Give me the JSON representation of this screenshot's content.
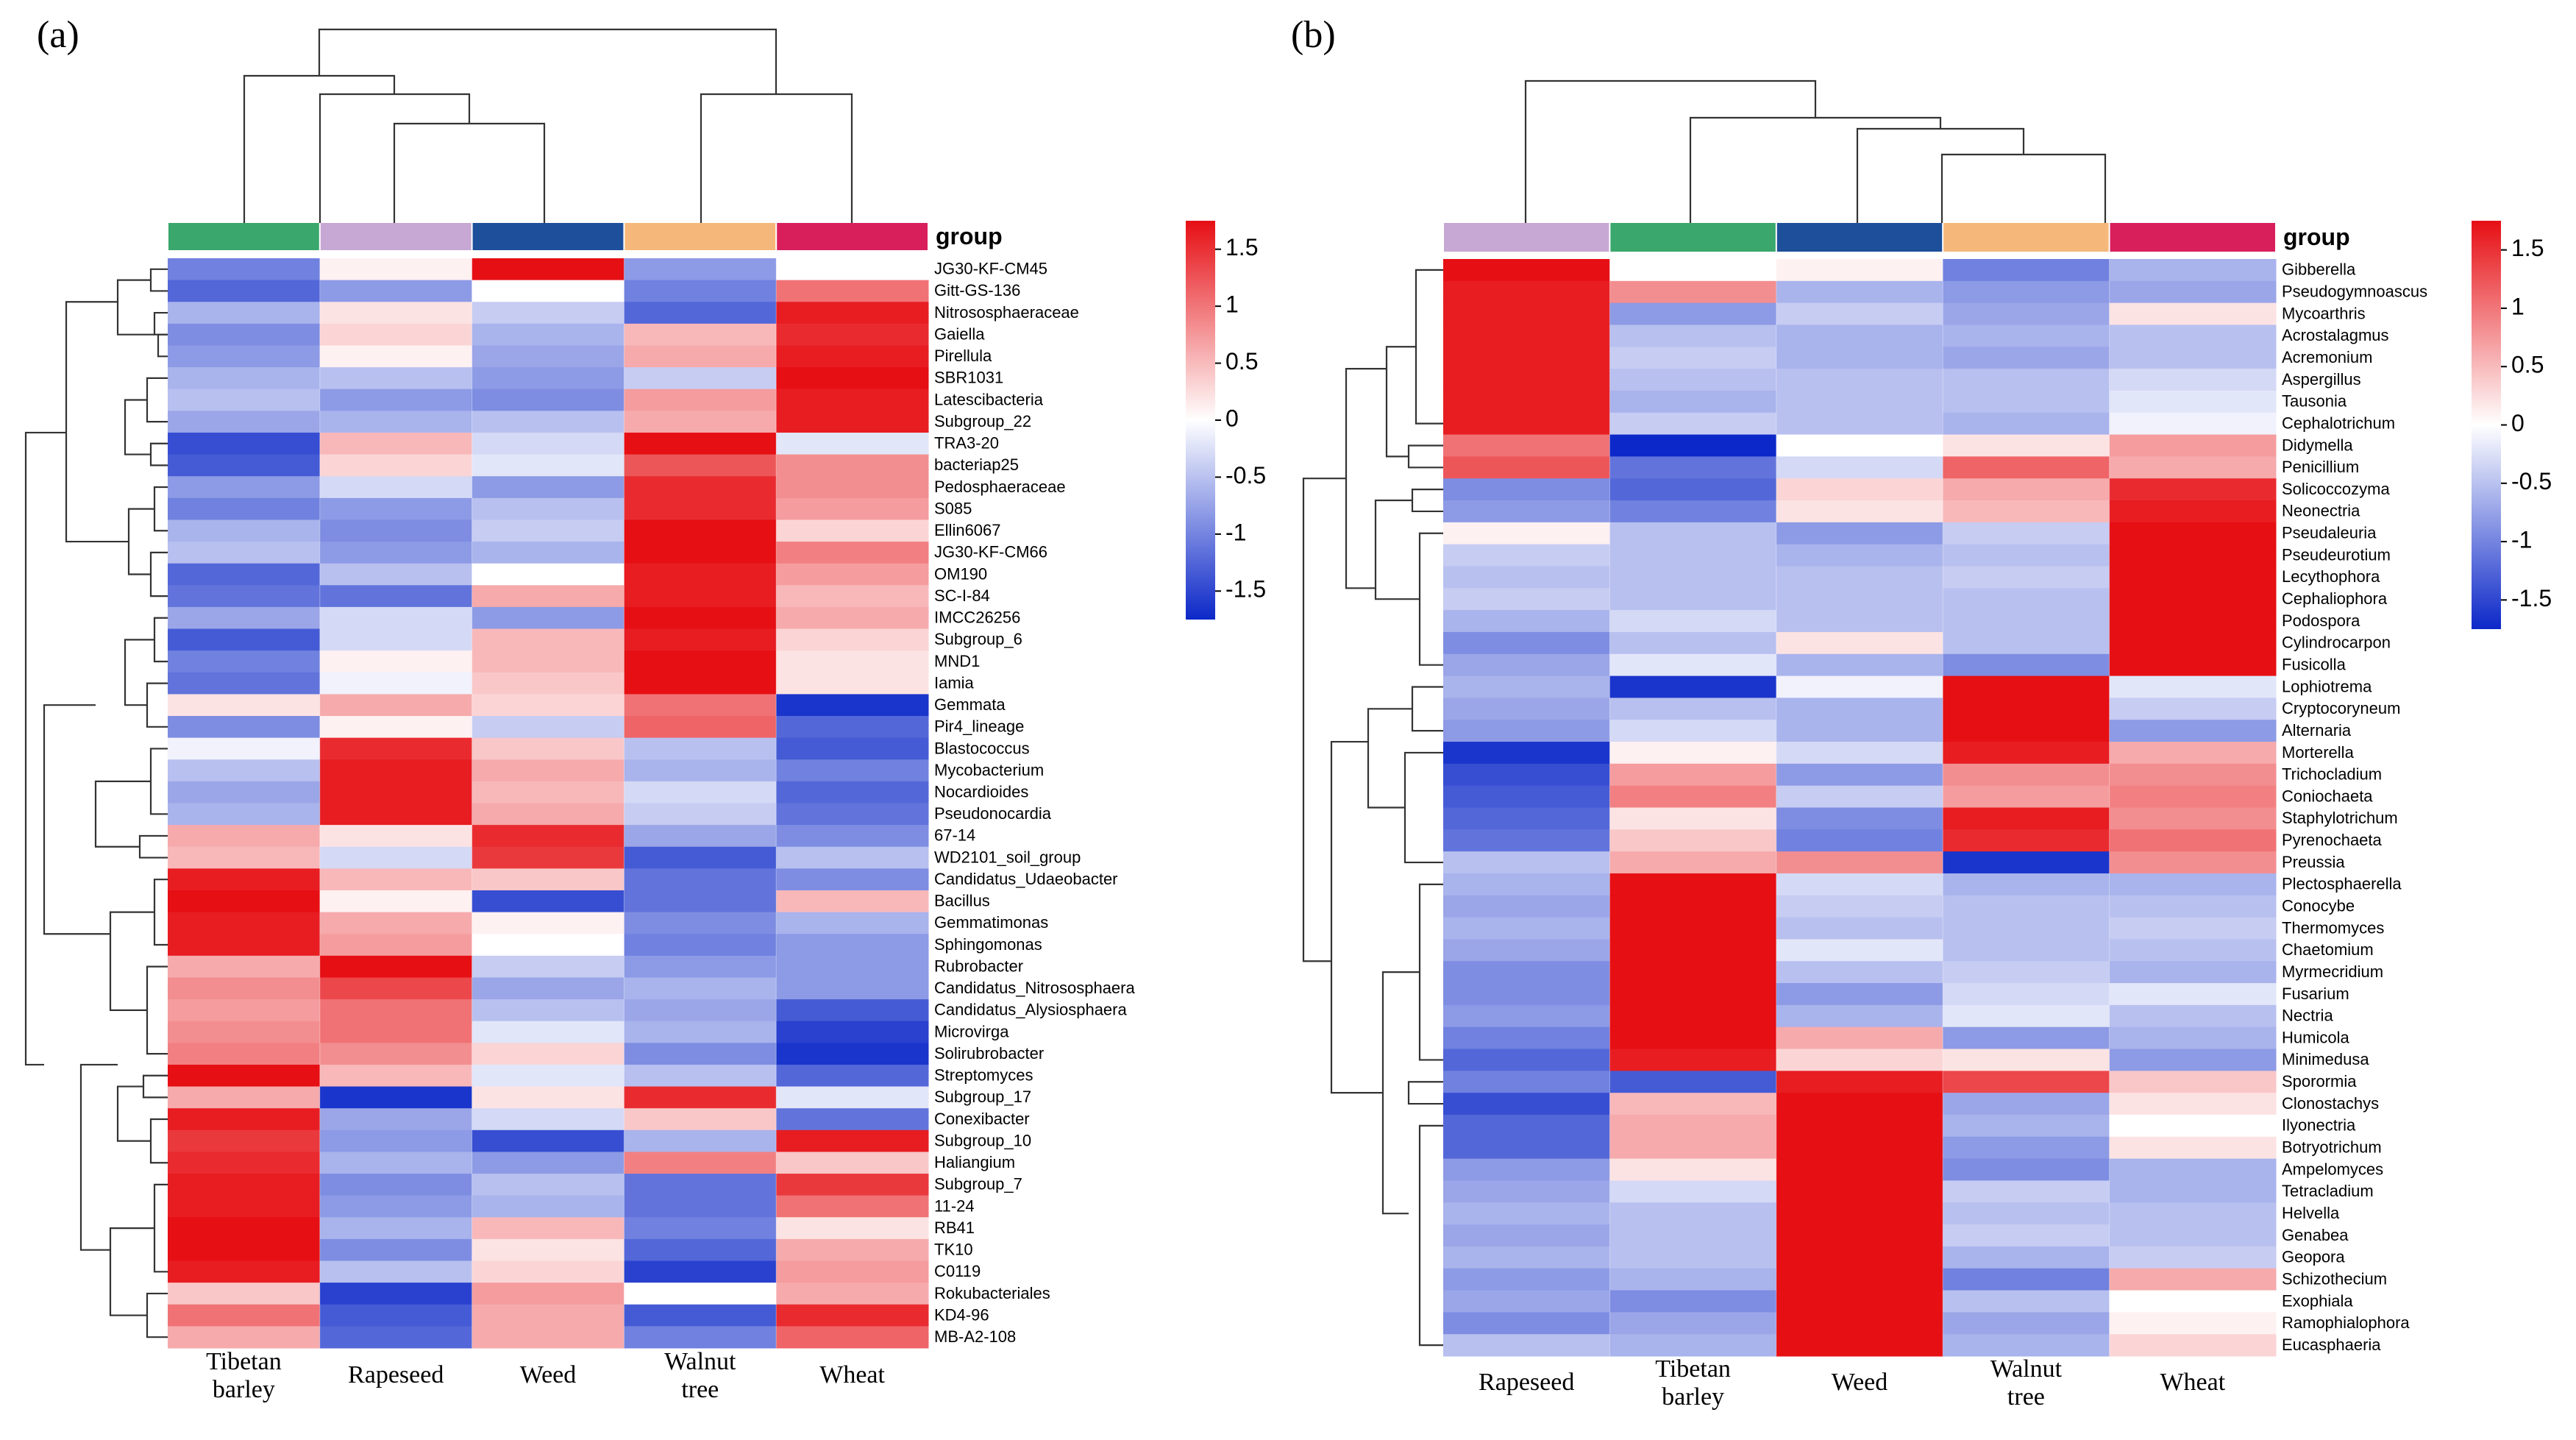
{
  "chart_data": [
    {
      "type": "heatmap",
      "panel_label": "(a)",
      "group_label": "group",
      "legend_ticks": [
        "1.5",
        "1",
        "0.5",
        "0",
        "-0.5",
        "-1",
        "-1.5"
      ],
      "legend_range": [
        -1.75,
        1.75
      ],
      "columns": [
        "Tibetan barley",
        "Rapeseed",
        "Weed",
        "Walnut tree",
        "Wheat"
      ],
      "column_labels": [
        [
          "Tibetan",
          "barley"
        ],
        [
          "Rapeseed"
        ],
        [
          "Weed"
        ],
        [
          "Walnut",
          "tree"
        ],
        [
          "Wheat"
        ]
      ],
      "group_colors": [
        "#3aa76d",
        "#c7a8d4",
        "#1e4f9a",
        "#f6b87a",
        "#d81f5c"
      ],
      "rows": [
        "JG30-KF-CM45",
        "Gitt-GS-136",
        "Nitrososphaeraceae",
        "Gaiella",
        "Pirellula",
        "SBR1031",
        "Latescibacteria",
        "Subgroup_22",
        "TRA3-20",
        "bacteriap25",
        "Pedosphaeraceae",
        "S085",
        "Ellin6067",
        "JG30-KF-CM66",
        "OM190",
        "SC-I-84",
        "IMCC26256",
        "Subgroup_6",
        "MND1",
        "Iamia",
        "Gemmata",
        "Pir4_lineage",
        "Blastococcus",
        "Mycobacterium",
        "Nocardioides",
        "Pseudonocardia",
        "67-14",
        "WD2101_soil_group",
        "Candidatus_Udaeobacter",
        "Bacillus",
        "Gemmatimonas",
        "Sphingomonas",
        "Rubrobacter",
        "Candidatus_Nitrososphaera",
        "Candidatus_Alysiosphaera",
        "Microvirga",
        "Solirubrobacter",
        "Streptomyces",
        "Subgroup_17",
        "Conexibacter",
        "Subgroup_10",
        "Haliangium",
        "Subgroup_7",
        "11-24",
        "RB41",
        "TK10",
        "C0119",
        "Rokubacteriales",
        "KD4-96",
        "MB-A2-108"
      ],
      "values": [
        [
          -1.0,
          0.1,
          1.7,
          -0.8,
          0.0
        ],
        [
          -1.2,
          -0.8,
          0.0,
          -1.0,
          1.0
        ],
        [
          -0.6,
          0.2,
          -0.4,
          -1.2,
          1.6
        ],
        [
          -0.9,
          0.3,
          -0.6,
          0.5,
          1.5
        ],
        [
          -0.8,
          0.1,
          -0.7,
          0.6,
          1.6
        ],
        [
          -0.6,
          -0.5,
          -0.8,
          -0.4,
          1.7
        ],
        [
          -0.5,
          -0.8,
          -0.9,
          0.7,
          1.6
        ],
        [
          -0.7,
          -0.6,
          -0.5,
          0.6,
          1.6
        ],
        [
          -1.4,
          0.5,
          -0.3,
          1.7,
          -0.2
        ],
        [
          -1.3,
          0.3,
          -0.2,
          1.2,
          0.8
        ],
        [
          -0.8,
          -0.3,
          -0.8,
          1.5,
          0.8
        ],
        [
          -1.0,
          -0.8,
          -0.5,
          1.5,
          0.7
        ],
        [
          -0.6,
          -0.9,
          -0.4,
          1.7,
          0.3
        ],
        [
          -0.5,
          -0.8,
          -0.6,
          1.7,
          0.9
        ],
        [
          -1.2,
          -0.5,
          0.0,
          1.6,
          0.7
        ],
        [
          -1.1,
          -1.1,
          0.6,
          1.6,
          0.5
        ],
        [
          -0.7,
          -0.3,
          -0.8,
          1.7,
          0.6
        ],
        [
          -1.3,
          -0.3,
          0.5,
          1.6,
          0.3
        ],
        [
          -1.0,
          0.1,
          0.5,
          1.7,
          0.2
        ],
        [
          -1.1,
          -0.1,
          0.4,
          1.7,
          0.2
        ],
        [
          0.2,
          0.6,
          0.3,
          1.0,
          -1.6
        ],
        [
          -0.9,
          0.1,
          -0.4,
          1.1,
          -1.2
        ],
        [
          -0.1,
          1.5,
          0.4,
          -0.5,
          -1.3
        ],
        [
          -0.5,
          1.6,
          0.6,
          -0.6,
          -1.0
        ],
        [
          -0.7,
          1.6,
          0.5,
          -0.3,
          -1.2
        ],
        [
          -0.6,
          1.6,
          0.6,
          -0.4,
          -1.1
        ],
        [
          0.6,
          0.2,
          1.5,
          -0.7,
          -0.9
        ],
        [
          0.5,
          -0.3,
          1.4,
          -1.3,
          -0.5
        ],
        [
          1.6,
          0.5,
          0.4,
          -1.1,
          -0.9
        ],
        [
          1.7,
          0.1,
          -1.4,
          -1.1,
          0.5
        ],
        [
          1.6,
          0.6,
          0.1,
          -0.9,
          -0.6
        ],
        [
          1.6,
          0.7,
          0.0,
          -1.0,
          -0.8
        ],
        [
          0.6,
          1.7,
          -0.4,
          -0.8,
          -0.8
        ],
        [
          0.8,
          1.3,
          -0.7,
          -0.6,
          -0.8
        ],
        [
          0.7,
          1.0,
          -0.5,
          -0.7,
          -1.3
        ],
        [
          0.8,
          1.0,
          -0.2,
          -0.6,
          -1.5
        ],
        [
          0.9,
          0.8,
          0.3,
          -0.9,
          -1.6
        ],
        [
          1.7,
          0.5,
          -0.2,
          -0.5,
          -1.2
        ],
        [
          0.6,
          -1.6,
          0.2,
          1.5,
          -0.2
        ],
        [
          1.6,
          -0.7,
          -0.3,
          0.4,
          -1.1
        ],
        [
          1.4,
          -0.8,
          -1.4,
          -0.6,
          1.6
        ],
        [
          1.5,
          -0.6,
          -0.8,
          0.9,
          0.4
        ],
        [
          1.6,
          -0.9,
          -0.5,
          -1.1,
          1.4
        ],
        [
          1.6,
          -0.8,
          -0.6,
          -1.1,
          1.0
        ],
        [
          1.7,
          -0.6,
          0.5,
          -1.0,
          0.2
        ],
        [
          1.7,
          -0.9,
          0.2,
          -1.2,
          0.6
        ],
        [
          1.6,
          -0.5,
          0.3,
          -1.5,
          0.7
        ],
        [
          0.4,
          -1.5,
          0.7,
          0.0,
          0.6
        ],
        [
          1.0,
          -1.3,
          0.6,
          -1.3,
          1.5
        ],
        [
          0.6,
          -1.2,
          0.6,
          -1.0,
          1.1
        ]
      ]
    },
    {
      "type": "heatmap",
      "panel_label": "(b)",
      "group_label": "group",
      "legend_ticks": [
        "1.5",
        "1",
        "0.5",
        "0",
        "-0.5",
        "-1",
        "-1.5"
      ],
      "legend_range": [
        -1.75,
        1.75
      ],
      "columns": [
        "Rapeseed",
        "Tibetan barley",
        "Weed",
        "Walnut tree",
        "Wheat"
      ],
      "column_labels": [
        [
          "Rapeseed"
        ],
        [
          "Tibetan",
          "barley"
        ],
        [
          "Weed"
        ],
        [
          "Walnut",
          "tree"
        ],
        [
          "Wheat"
        ]
      ],
      "group_colors": [
        "#c7a8d4",
        "#3aa76d",
        "#1e4f9a",
        "#f6b87a",
        "#d81f5c"
      ],
      "rows": [
        "Gibberella",
        "Pseudogymnoascus",
        "Mycoarthris",
        "Acrostalagmus",
        "Acremonium",
        "Aspergillus",
        "Tausonia",
        "Cephalotrichum",
        "Didymella",
        "Penicillium",
        "Solicoccozyma",
        "Neonectria",
        "Pseudaleuria",
        "Pseudeurotium",
        "Lecythophora",
        "Cephaliophora",
        "Podospora",
        "Cylindrocarpon",
        "Fusicolla",
        "Lophiotrema",
        "Cryptocoryneum",
        "Alternaria",
        "Morterella",
        "Trichocladium",
        "Coniochaeta",
        "Staphylotrichum",
        "Pyrenochaeta",
        "Preussia",
        "Plectosphaerella",
        "Conocybe",
        "Thermomyces",
        "Chaetomium",
        "Myrmecridium",
        "Fusarium",
        "Nectria",
        "Humicola",
        "Minimedusa",
        "Sporormia",
        "Clonostachys",
        "Ilyonectria",
        "Botryotrichum",
        "Ampelomyces",
        "Tetracladium",
        "Helvella",
        "Genabea",
        "Geopora",
        "Schizothecium",
        "Exophiala",
        "Ramophialophora",
        "Eucasphaeria"
      ],
      "values": [
        [
          1.7,
          0.0,
          0.1,
          -1.0,
          -0.6
        ],
        [
          1.6,
          0.8,
          -0.6,
          -0.8,
          -0.7
        ],
        [
          1.6,
          -0.8,
          -0.4,
          -0.7,
          0.2
        ],
        [
          1.6,
          -0.5,
          -0.6,
          -0.6,
          -0.5
        ],
        [
          1.6,
          -0.4,
          -0.6,
          -0.7,
          -0.5
        ],
        [
          1.6,
          -0.5,
          -0.5,
          -0.5,
          -0.3
        ],
        [
          1.6,
          -0.6,
          -0.5,
          -0.5,
          -0.2
        ],
        [
          1.6,
          -0.4,
          -0.5,
          -0.6,
          -0.1
        ],
        [
          1.0,
          -1.7,
          0.0,
          0.2,
          0.7
        ],
        [
          1.2,
          -1.1,
          -0.3,
          1.1,
          0.6
        ],
        [
          -0.9,
          -1.2,
          0.3,
          0.6,
          1.5
        ],
        [
          -0.8,
          -1.0,
          0.2,
          0.5,
          1.6
        ],
        [
          0.1,
          -0.5,
          -0.8,
          -0.4,
          1.7
        ],
        [
          -0.4,
          -0.5,
          -0.6,
          -0.5,
          1.7
        ],
        [
          -0.5,
          -0.5,
          -0.5,
          -0.4,
          1.7
        ],
        [
          -0.4,
          -0.5,
          -0.5,
          -0.5,
          1.7
        ],
        [
          -0.6,
          -0.3,
          -0.5,
          -0.5,
          1.7
        ],
        [
          -0.9,
          -0.5,
          0.2,
          -0.5,
          1.7
        ],
        [
          -0.7,
          -0.2,
          -0.6,
          -0.9,
          1.7
        ],
        [
          -0.6,
          -1.6,
          -0.1,
          1.7,
          -0.2
        ],
        [
          -0.7,
          -0.5,
          -0.6,
          1.7,
          -0.4
        ],
        [
          -0.8,
          -0.3,
          -0.6,
          1.7,
          -0.8
        ],
        [
          -1.6,
          0.1,
          -0.3,
          1.6,
          0.6
        ],
        [
          -1.4,
          0.7,
          -0.8,
          0.8,
          0.8
        ],
        [
          -1.3,
          0.9,
          -0.4,
          0.7,
          0.9
        ],
        [
          -1.2,
          0.2,
          -0.9,
          1.6,
          0.8
        ],
        [
          -1.1,
          0.4,
          -1.0,
          1.5,
          1.0
        ],
        [
          -0.5,
          0.6,
          0.8,
          -1.6,
          0.8
        ],
        [
          -0.6,
          1.7,
          -0.3,
          -0.6,
          -0.6
        ],
        [
          -0.7,
          1.7,
          -0.4,
          -0.5,
          -0.5
        ],
        [
          -0.6,
          1.7,
          -0.5,
          -0.5,
          -0.4
        ],
        [
          -0.7,
          1.7,
          -0.2,
          -0.5,
          -0.5
        ],
        [
          -0.9,
          1.7,
          -0.5,
          -0.4,
          -0.6
        ],
        [
          -0.9,
          1.7,
          -0.8,
          -0.3,
          -0.2
        ],
        [
          -0.8,
          1.7,
          -0.6,
          -0.2,
          -0.5
        ],
        [
          -1.0,
          1.7,
          0.6,
          -0.8,
          -0.6
        ],
        [
          -1.2,
          1.6,
          0.3,
          0.2,
          -0.8
        ],
        [
          -1.0,
          -1.3,
          1.6,
          1.3,
          0.4
        ],
        [
          -1.4,
          0.5,
          1.7,
          -0.7,
          0.2
        ],
        [
          -1.2,
          0.6,
          1.7,
          -0.6,
          0.0
        ],
        [
          -1.2,
          0.6,
          1.7,
          -0.8,
          0.2
        ],
        [
          -0.8,
          0.2,
          1.7,
          -0.9,
          -0.6
        ],
        [
          -0.7,
          -0.3,
          1.7,
          -0.4,
          -0.6
        ],
        [
          -0.6,
          -0.5,
          1.7,
          -0.5,
          -0.5
        ],
        [
          -0.7,
          -0.5,
          1.7,
          -0.4,
          -0.5
        ],
        [
          -0.6,
          -0.5,
          1.7,
          -0.6,
          -0.4
        ],
        [
          -0.8,
          -0.6,
          1.7,
          -1.0,
          0.6
        ],
        [
          -0.7,
          -0.9,
          1.7,
          -0.5,
          0.0
        ],
        [
          -0.9,
          -0.7,
          1.7,
          -0.7,
          0.1
        ],
        [
          -0.5,
          -0.6,
          1.7,
          -0.6,
          0.3
        ]
      ]
    }
  ]
}
